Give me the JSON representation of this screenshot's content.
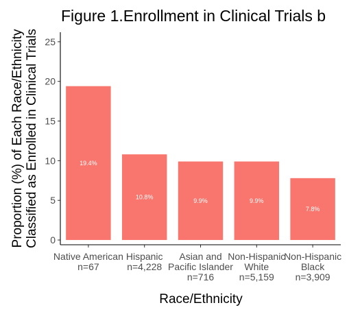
{
  "chart_data": {
    "type": "bar",
    "title": "Figure 1.Enrollment in Clinical Trials b",
    "xlabel": "Race/Ethnicity",
    "ylabel": [
      "Proportion (%) of Each Race/Ethnicity",
      "Classified as Enrolled in Clinical Trials"
    ],
    "categories": [
      [
        "Native American",
        "n=67"
      ],
      [
        "Hispanic",
        "n=4,228"
      ],
      [
        "Asian and",
        "Pacific Islander",
        "n=716"
      ],
      [
        "Non-Hispanic",
        "White",
        "n=5,159"
      ],
      [
        "Non-Hispanic",
        "Black",
        "n=3,909"
      ]
    ],
    "values": [
      19.4,
      10.8,
      9.9,
      9.9,
      7.8
    ],
    "data_labels": [
      "19.4%",
      "10.8%",
      "9.9%",
      "9.9%",
      "7.8%"
    ],
    "yticks": [
      0,
      5,
      10,
      15,
      20,
      25
    ],
    "ylim": [
      -0.6,
      26.2
    ],
    "bar_color": "#F8766D",
    "grid": false,
    "legend": "none"
  }
}
